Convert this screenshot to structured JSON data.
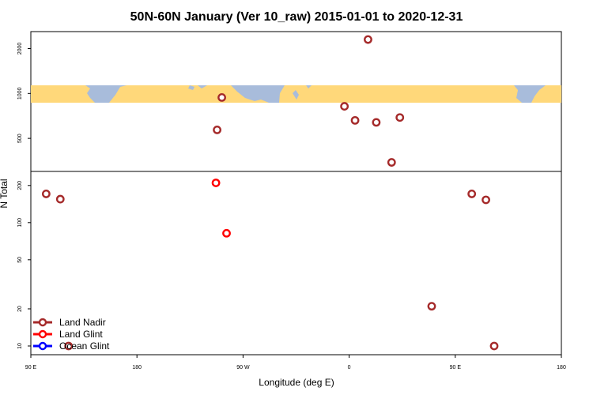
{
  "chart_data": {
    "type": "scatter",
    "title": "50N-60N January (Ver 10_raw)   2015-01-01 to 2020-12-31",
    "xlabel": "Longitude (deg E)",
    "ylabel": "N Total",
    "xlim": [
      90,
      450
    ],
    "x_ticks": [
      {
        "value": 90,
        "label": "90 E"
      },
      {
        "value": 180,
        "label": "180"
      },
      {
        "value": 270,
        "label": "90 W"
      },
      {
        "value": 360,
        "label": "0"
      },
      {
        "value": 450,
        "label": "90 E"
      },
      {
        "value": 540,
        "label": "180"
      }
    ],
    "x_display_range": [
      90,
      540
    ],
    "y_scale": "log",
    "upper_panel": {
      "ylim": [
        300,
        2600
      ],
      "y_ticks": [
        {
          "value": 500,
          "label": "500"
        },
        {
          "value": 1000,
          "label": "1000"
        },
        {
          "value": 2000,
          "label": "2000"
        }
      ],
      "map_band": {
        "latitudes": "50N-60N",
        "land_color": "#FFD87A",
        "ocean_color": "#A8BCDB"
      }
    },
    "lower_panel": {
      "ylim": [
        8.5,
        260
      ],
      "y_ticks": [
        {
          "value": 10,
          "label": "10"
        },
        {
          "value": 20,
          "label": "20"
        },
        {
          "value": 50,
          "label": "50"
        },
        {
          "value": 100,
          "label": "100"
        },
        {
          "value": 200,
          "label": "200"
        }
      ]
    },
    "legend": {
      "position": "bottom-left"
    },
    "series": [
      {
        "name": "Land Nadir",
        "color": "#A52A2A",
        "points": [
          {
            "x": 103,
            "y": 171
          },
          {
            "x": 115,
            "y": 155
          },
          {
            "x": 122,
            "y": 10
          },
          {
            "x": 248,
            "y": 570
          },
          {
            "x": 252,
            "y": 940
          },
          {
            "x": 356,
            "y": 820
          },
          {
            "x": 365,
            "y": 660
          },
          {
            "x": 376,
            "y": 2300
          },
          {
            "x": 383,
            "y": 640
          },
          {
            "x": 396,
            "y": 345
          },
          {
            "x": 403,
            "y": 690
          },
          {
            "x": 430,
            "y": 21
          },
          {
            "x": 464,
            "y": 171
          },
          {
            "x": 476,
            "y": 153
          },
          {
            "x": 483,
            "y": 10
          }
        ]
      },
      {
        "name": "Land Glint",
        "color": "#FF0000",
        "points": [
          {
            "x": 247,
            "y": 210
          },
          {
            "x": 256,
            "y": 82
          }
        ]
      },
      {
        "name": "Ocean Glint",
        "color": "#0000FF",
        "points": []
      }
    ]
  }
}
